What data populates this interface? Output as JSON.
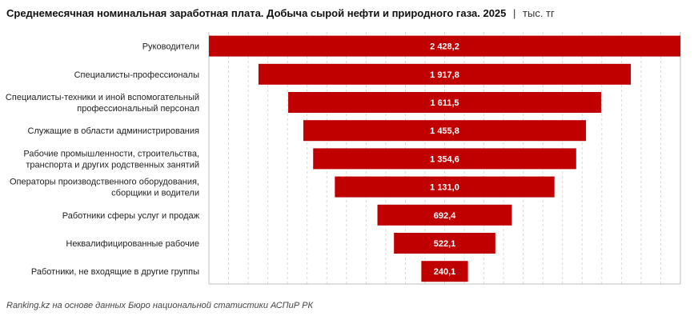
{
  "title": {
    "main": "Среднемесячная номинальная заработная плата. Добыча сырой нефти и природного газа. 2025",
    "separator": "|",
    "unit": "тыс. тг"
  },
  "source": "Ranking.kz на основе данных Бюро национальной статистики АСПиР РК",
  "colors": {
    "bar": "#c00000",
    "bar_label": "#ffffff",
    "grid": "#d9d9d9",
    "category": "#222222"
  },
  "chart_data": {
    "type": "bar",
    "orientation": "horizontal",
    "style": "centered funnel",
    "categories": [
      [
        "Руководители"
      ],
      [
        "Специалисты-профессионалы"
      ],
      [
        "Специалисты-техники и иной вспомогательный",
        "профессиональный персонал"
      ],
      [
        "Служащие в области администрирования"
      ],
      [
        "Рабочие промышленности, строительства,",
        "транспорта и других родственных занятий"
      ],
      [
        "Операторы производственного оборудования,",
        "сборщики и водители"
      ],
      [
        "Работники сферы услуг и продаж"
      ],
      [
        "Неквалифицированные рабочие"
      ],
      [
        "Работники, не входящие в другие группы"
      ]
    ],
    "values": [
      2428.2,
      1917.8,
      1611.5,
      1455.8,
      1354.6,
      1131.0,
      692.4,
      522.1,
      240.1
    ],
    "value_labels": [
      "2 428,2",
      "1 917,8",
      "1 611,5",
      "1 455,8",
      "1 354,6",
      "1 131,0",
      "692,4",
      "522,1",
      "240,1"
    ],
    "grid": true,
    "legend": "none"
  }
}
